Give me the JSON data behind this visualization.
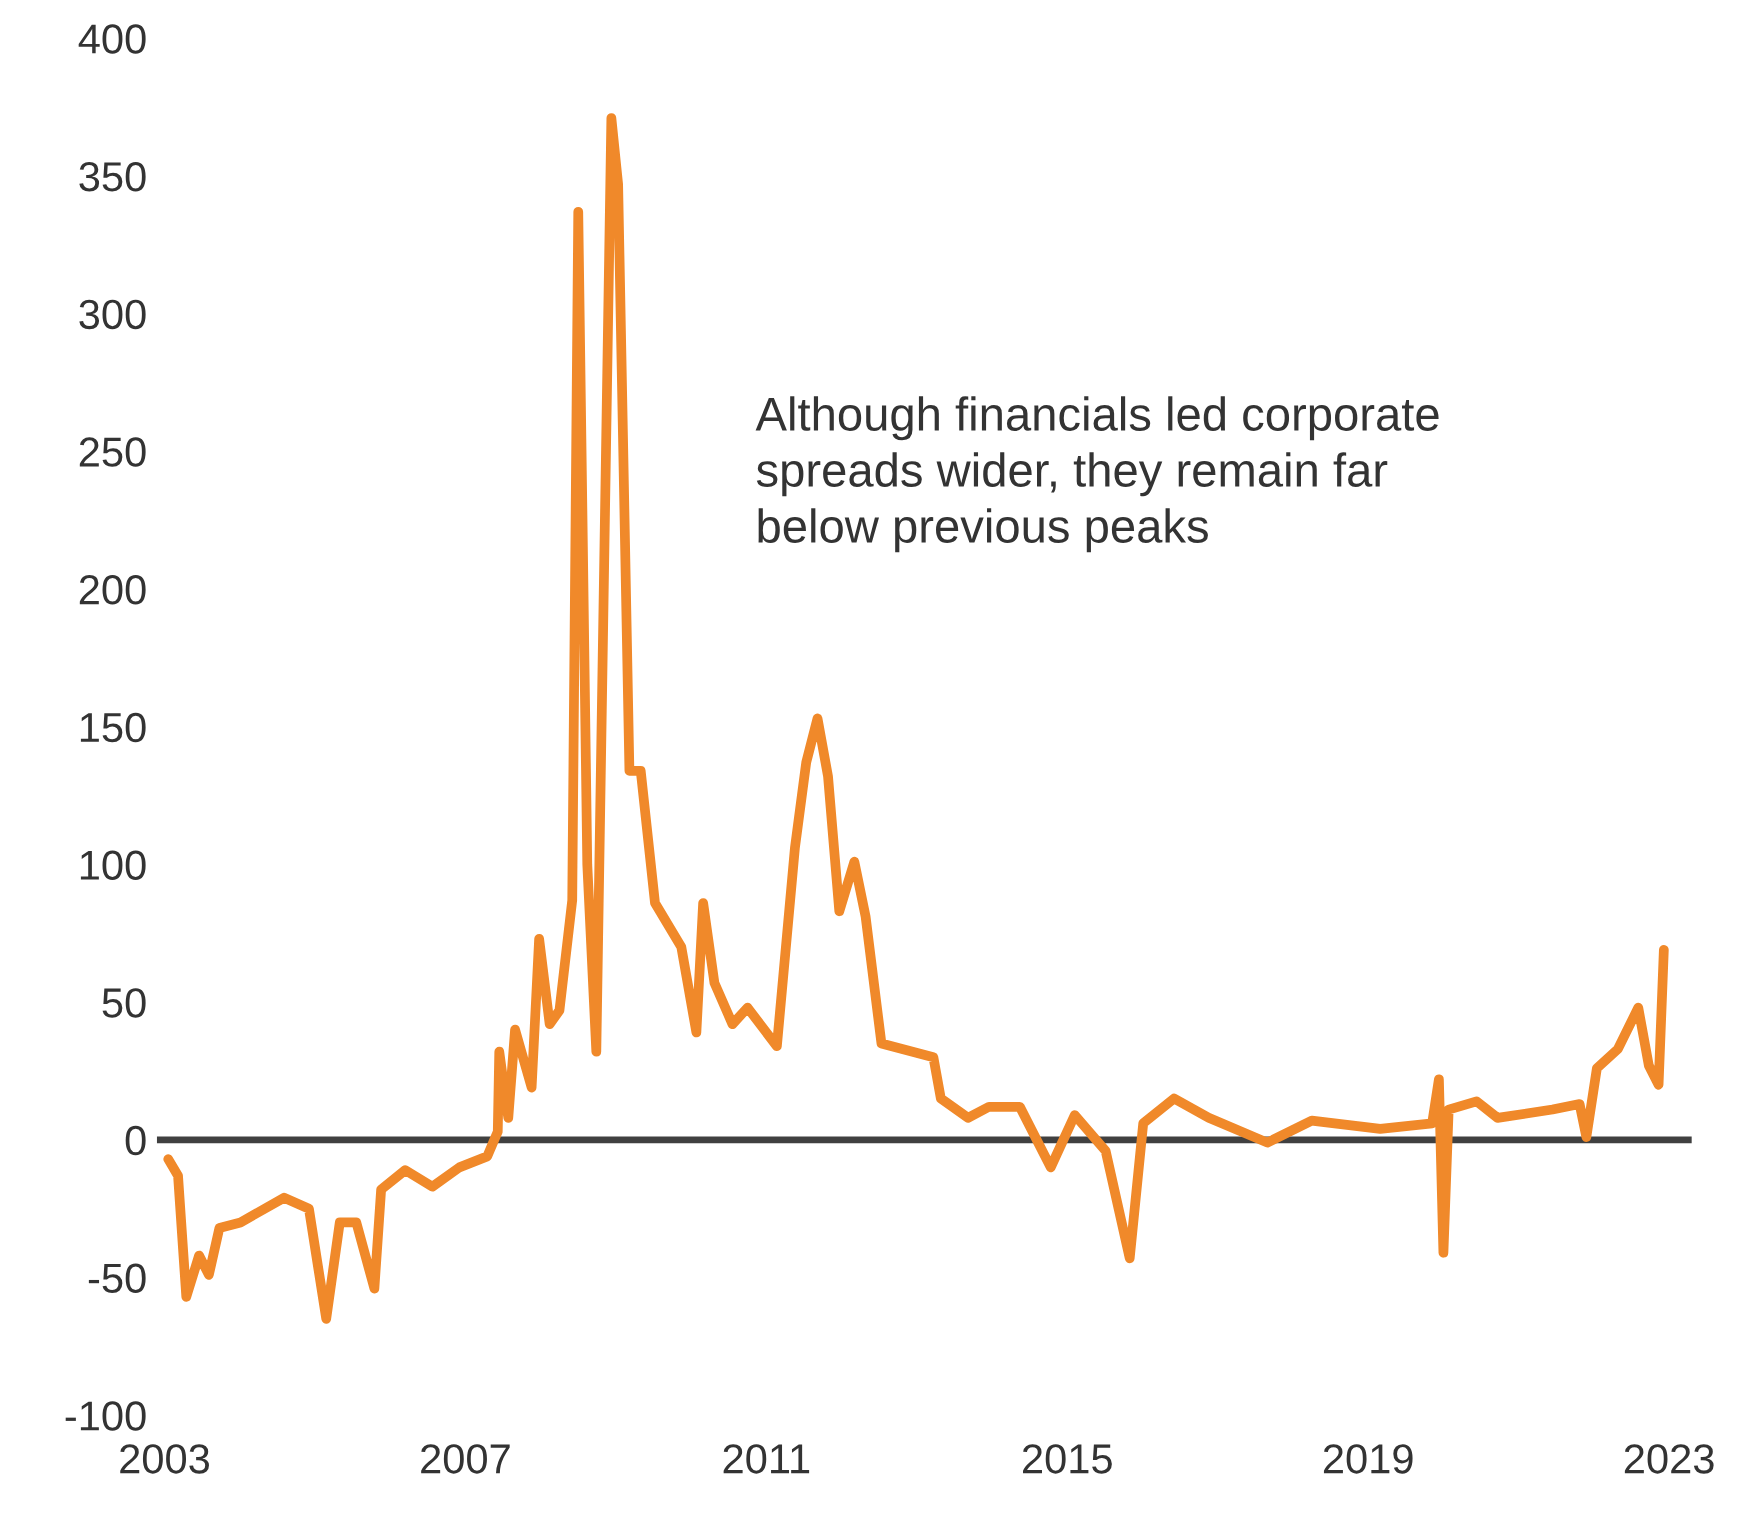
{
  "chart_data": {
    "type": "line",
    "x": [
      2003.05,
      2003.18,
      2003.29,
      2003.46,
      2003.59,
      2003.73,
      2004.01,
      2004.59,
      2004.92,
      2005.15,
      2005.33,
      2005.55,
      2005.79,
      2005.88,
      2006.2,
      2006.56,
      2006.92,
      2007.29,
      2007.43,
      2007.45,
      2007.57,
      2007.66,
      2007.88,
      2007.98,
      2008.12,
      2008.25,
      2008.42,
      2008.5,
      2008.62,
      2008.74,
      2008.94,
      2009.03,
      2009.18,
      2009.33,
      2009.52,
      2009.87,
      2010.07,
      2010.16,
      2010.31,
      2010.55,
      2010.75,
      2011.14,
      2011.38,
      2011.53,
      2011.68,
      2011.82,
      2011.97,
      2012.17,
      2012.32,
      2012.53,
      2013.22,
      2013.32,
      2013.68,
      2013.96,
      2014.37,
      2014.78,
      2015.1,
      2015.51,
      2015.83,
      2016.01,
      2016.42,
      2016.88,
      2017.66,
      2018.25,
      2019.16,
      2019.85,
      2019.94,
      2020.0,
      2020.07,
      2020.44,
      2020.72,
      2021.45,
      2021.81,
      2021.9,
      2022.04,
      2022.32,
      2022.59,
      2022.73,
      2022.86,
      2022.93
    ],
    "series": [
      {
        "color": "#f0892a",
        "values": [
          -7,
          -13,
          -57,
          -42,
          -49,
          -32,
          -30,
          -21,
          -25,
          -65,
          -30,
          -30,
          -54,
          -18,
          -11,
          -17,
          -10,
          -6,
          3,
          32,
          8,
          40,
          19,
          73,
          42,
          47,
          87,
          337,
          100,
          32,
          371,
          347,
          134,
          134,
          86,
          70,
          39,
          86,
          57,
          42,
          48,
          34,
          106,
          137,
          153,
          132,
          83,
          101,
          81,
          35,
          30,
          15,
          8,
          12,
          12,
          -10,
          9,
          -4,
          -43,
          6,
          15,
          8,
          -1,
          7,
          4,
          6,
          22,
          -41,
          11,
          14,
          8,
          11,
          13,
          1,
          26,
          33,
          48,
          27,
          20,
          69
        ]
      }
    ],
    "xlim": [
      2002.9,
      2023.3
    ],
    "xticks": [
      2003,
      2007,
      2011,
      2015,
      2019,
      2023
    ],
    "ylim": [
      -100,
      400
    ],
    "yticks": [
      -100,
      -50,
      0,
      50,
      100,
      150,
      200,
      250,
      300,
      350,
      400
    ],
    "ref_lines": [
      {
        "axis": "y",
        "value": 0,
        "color": "#404040"
      }
    ],
    "annotations": [
      "Although financials led corporate\nspreads wider, they remain far\nbelow previous peaks"
    ],
    "grid": false,
    "marker": "none",
    "line_style": "solid"
  }
}
